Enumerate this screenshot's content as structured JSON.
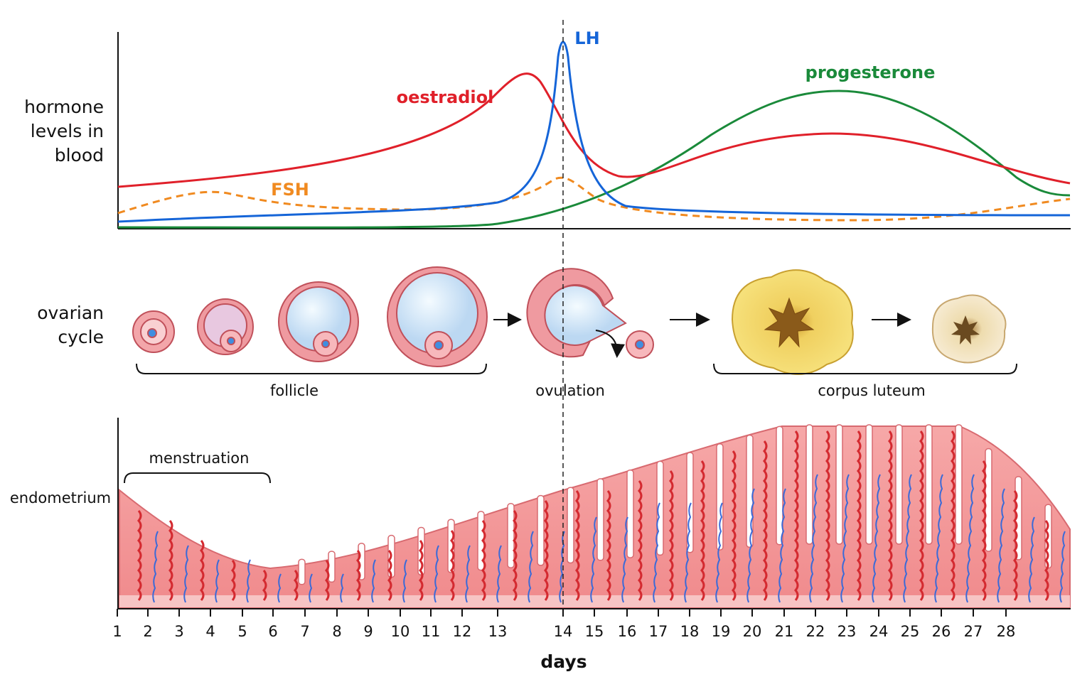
{
  "hormones": {
    "axis_label": [
      "hormone",
      "levels in",
      "blood"
    ],
    "curves": {
      "lh": "LH",
      "oestradiol": "oestradiol",
      "fsh": "FSH",
      "progesterone": "progesterone"
    }
  },
  "ovarian": {
    "label": [
      "ovarian",
      "cycle"
    ],
    "stages": [
      "follicle",
      "ovulation",
      "corpus luteum"
    ]
  },
  "endometrium": {
    "label": "endometrium",
    "phase": "menstruation"
  },
  "days": {
    "label": "days",
    "ticks": [
      1,
      2,
      3,
      4,
      5,
      6,
      7,
      8,
      9,
      10,
      11,
      12,
      13,
      14,
      15,
      16,
      17,
      18,
      19,
      20,
      21,
      22,
      23,
      24,
      25,
      26,
      27,
      28
    ]
  }
}
